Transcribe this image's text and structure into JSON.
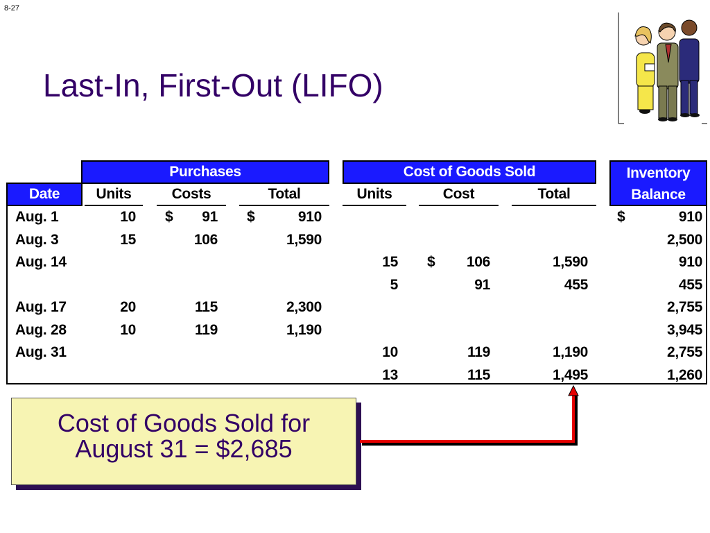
{
  "slide_number": "8-27",
  "title": "Last-In, First-Out (LIFO)",
  "clipart": "people-discussing-clipart",
  "group_headers": {
    "purchases": "Purchases",
    "cogs": "Cost of Goods Sold",
    "inventory_line1": "Inventory",
    "inventory_line2": "Balance"
  },
  "columns": {
    "date": "Date",
    "p_units": "Units",
    "p_costs": "Costs",
    "p_total": "Total",
    "c_units": "Units",
    "c_cost": "Cost",
    "c_total": "Total"
  },
  "rows": [
    {
      "date": "Aug. 1",
      "p_units": "10",
      "p_cost_sign": "$",
      "p_costs": "91",
      "p_total_sign": "$",
      "p_total": "910",
      "c_units": "",
      "c_cost_sign": "",
      "c_cost": "",
      "c_total": "",
      "bal_sign": "$",
      "balance": "910"
    },
    {
      "date": "Aug. 3",
      "p_units": "15",
      "p_cost_sign": "",
      "p_costs": "106",
      "p_total_sign": "",
      "p_total": "1,590",
      "c_units": "",
      "c_cost_sign": "",
      "c_cost": "",
      "c_total": "",
      "bal_sign": "",
      "balance": "2,500"
    },
    {
      "date": "Aug. 14",
      "p_units": "",
      "p_cost_sign": "",
      "p_costs": "",
      "p_total_sign": "",
      "p_total": "",
      "c_units": "15",
      "c_cost_sign": "$",
      "c_cost": "106",
      "c_total": "1,590",
      "bal_sign": "",
      "balance": "910"
    },
    {
      "date": "",
      "p_units": "",
      "p_cost_sign": "",
      "p_costs": "",
      "p_total_sign": "",
      "p_total": "",
      "c_units": "5",
      "c_cost_sign": "",
      "c_cost": "91",
      "c_total": "455",
      "bal_sign": "",
      "balance": "455"
    },
    {
      "date": "Aug. 17",
      "p_units": "20",
      "p_cost_sign": "",
      "p_costs": "115",
      "p_total_sign": "",
      "p_total": "2,300",
      "c_units": "",
      "c_cost_sign": "",
      "c_cost": "",
      "c_total": "",
      "bal_sign": "",
      "balance": "2,755"
    },
    {
      "date": "Aug. 28",
      "p_units": "10",
      "p_cost_sign": "",
      "p_costs": "119",
      "p_total_sign": "",
      "p_total": "1,190",
      "c_units": "",
      "c_cost_sign": "",
      "c_cost": "",
      "c_total": "",
      "bal_sign": "",
      "balance": "3,945"
    },
    {
      "date": "Aug. 31",
      "p_units": "",
      "p_cost_sign": "",
      "p_costs": "",
      "p_total_sign": "",
      "p_total": "",
      "c_units": "10",
      "c_cost_sign": "",
      "c_cost": "119",
      "c_total": "1,190",
      "bal_sign": "",
      "balance": "2,755"
    },
    {
      "date": "",
      "p_units": "",
      "p_cost_sign": "",
      "p_costs": "",
      "p_total_sign": "",
      "p_total": "",
      "c_units": "13",
      "c_cost_sign": "",
      "c_cost": "115",
      "c_total": "1,495",
      "bal_sign": "",
      "balance": "1,260"
    }
  ],
  "callout": {
    "line1": "Cost of Goods Sold for",
    "line2": "August 31 = $2,685"
  },
  "colors": {
    "title": "#330066",
    "header_fill": "#1a1aff",
    "callout_fill": "#f7f4b3",
    "arrow": "#e60000"
  }
}
